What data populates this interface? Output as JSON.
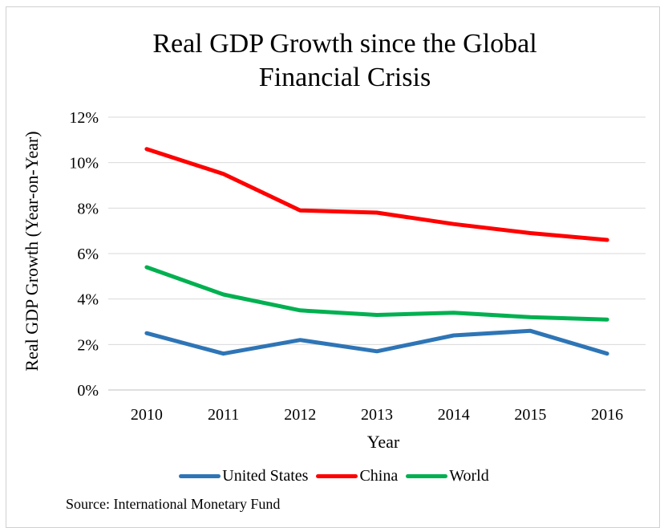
{
  "chart_data": {
    "type": "line",
    "title": "Real GDP Growth since the Global Financial Crisis",
    "title_lines": [
      "Real GDP Growth since the Global",
      "Financial Crisis"
    ],
    "xlabel": "Year",
    "ylabel": "Real GDP Growth (Year-on-Year)",
    "categories": [
      "2010",
      "2011",
      "2012",
      "2013",
      "2014",
      "2015",
      "2016"
    ],
    "ylim": [
      0,
      12
    ],
    "yticks": [
      0,
      2,
      4,
      6,
      8,
      10,
      12
    ],
    "ytick_labels": [
      "0%",
      "2%",
      "4%",
      "6%",
      "8%",
      "10%",
      "12%"
    ],
    "grid": "horizontal",
    "legend_position": "bottom",
    "series": [
      {
        "name": "United States",
        "color": "#2e75b6",
        "values": [
          2.5,
          1.6,
          2.2,
          1.7,
          2.4,
          2.6,
          1.6
        ]
      },
      {
        "name": "China",
        "color": "#ff0000",
        "values": [
          10.6,
          9.5,
          7.9,
          7.8,
          7.3,
          6.9,
          6.6
        ]
      },
      {
        "name": "World",
        "color": "#00b050",
        "values": [
          5.4,
          4.2,
          3.5,
          3.3,
          3.4,
          3.2,
          3.1
        ]
      }
    ],
    "source": "Source: International Monetary Fund"
  }
}
